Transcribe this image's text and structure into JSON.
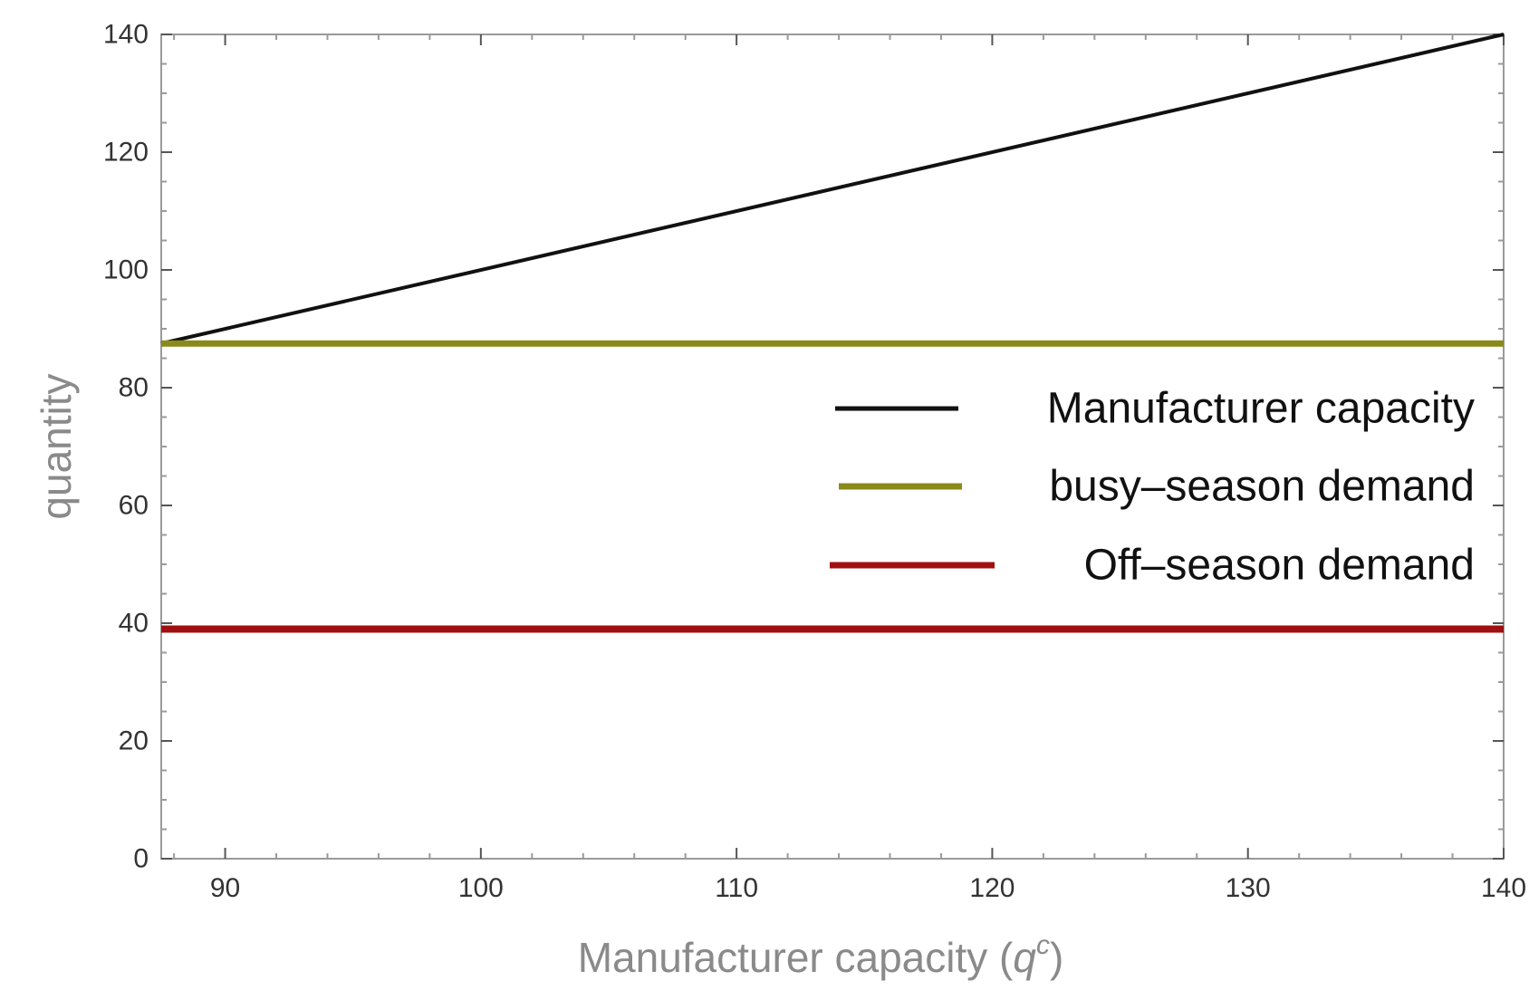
{
  "chart_data": {
    "type": "line",
    "title": "",
    "xlabel": "Manufacturer capacity",
    "xlabel_symbol": "q",
    "xlabel_superscript": "c",
    "ylabel": "quantity",
    "xlim": [
      87.5,
      140
    ],
    "ylim": [
      0,
      140
    ],
    "x_ticks": [
      90,
      100,
      110,
      120,
      130,
      140
    ],
    "y_ticks": [
      0,
      20,
      40,
      60,
      80,
      100,
      120,
      140
    ],
    "grid": false,
    "legend_position": "right, upper-middle",
    "series": [
      {
        "name": "Manufacturer capacity",
        "color": "#111111",
        "x": [
          87.5,
          140
        ],
        "y": [
          87.5,
          140
        ]
      },
      {
        "name": "busy–season demand",
        "color": "#8a8a1a",
        "x": [
          87.5,
          140
        ],
        "y": [
          87.5,
          87.5
        ]
      },
      {
        "name": "Off–season demand",
        "color": "#a01010",
        "x": [
          87.5,
          140
        ],
        "y": [
          39,
          39
        ]
      }
    ]
  }
}
